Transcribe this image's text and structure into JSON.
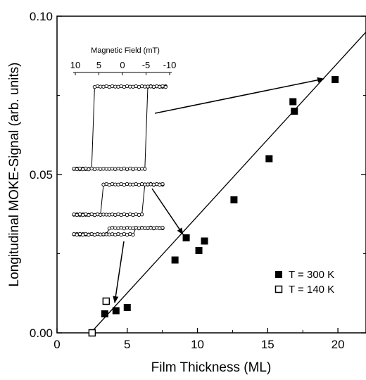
{
  "chart_data": {
    "type": "scatter",
    "title": "",
    "xlabel": "Film Thickness (ML)",
    "ylabel": "Longitudinal MOKE-Signal (arb. units)",
    "xlim": [
      0,
      22
    ],
    "ylim": [
      0,
      0.1
    ],
    "x_ticks": [
      "0",
      "5",
      "10",
      "15",
      "20"
    ],
    "y_ticks": [
      "0.00",
      "0.05",
      "0.10"
    ],
    "series": [
      {
        "name": "T = 300 K",
        "marker": "filled-square",
        "x": [
          3.4,
          4.2,
          5.0,
          8.4,
          9.2,
          10.1,
          10.5,
          12.6,
          15.1,
          16.8,
          16.9,
          19.8
        ],
        "y": [
          0.006,
          0.007,
          0.008,
          0.023,
          0.03,
          0.026,
          0.029,
          0.042,
          0.055,
          0.073,
          0.07,
          0.08
        ]
      },
      {
        "name": "T = 140 K",
        "marker": "open-square",
        "x": [
          2.5,
          3.5
        ],
        "y": [
          0.0,
          0.01
        ]
      }
    ],
    "fit_line": {
      "x": [
        2.4,
        22.0
      ],
      "y": [
        0.0,
        0.095
      ]
    },
    "legend_position": "bottom-right",
    "inset": {
      "title": "Magnetic Field (mT)",
      "x_ticks": [
        "10",
        "5",
        "0",
        "-5",
        "-10"
      ]
    },
    "colors": {
      "ink": "#000000",
      "background": "#ffffff"
    }
  }
}
